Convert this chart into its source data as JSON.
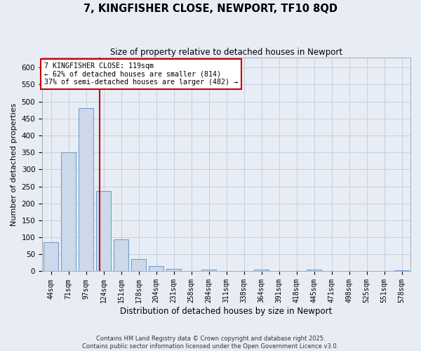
{
  "title": "7, KINGFISHER CLOSE, NEWPORT, TF10 8QD",
  "subtitle": "Size of property relative to detached houses in Newport",
  "xlabel": "Distribution of detached houses by size in Newport",
  "ylabel": "Number of detached properties",
  "footer_line1": "Contains HM Land Registry data © Crown copyright and database right 2025.",
  "footer_line2": "Contains public sector information licensed under the Open Government Licence v3.0.",
  "bin_labels": [
    "44sqm",
    "71sqm",
    "97sqm",
    "124sqm",
    "151sqm",
    "178sqm",
    "204sqm",
    "231sqm",
    "258sqm",
    "284sqm",
    "311sqm",
    "338sqm",
    "364sqm",
    "391sqm",
    "418sqm",
    "445sqm",
    "471sqm",
    "498sqm",
    "525sqm",
    "551sqm",
    "578sqm"
  ],
  "bar_values": [
    85,
    350,
    480,
    237,
    95,
    37,
    15,
    7,
    0,
    6,
    0,
    0,
    5,
    0,
    0,
    6,
    0,
    0,
    0,
    0,
    4
  ],
  "bar_color": "#ccd9ea",
  "bar_edgecolor": "#6699cc",
  "grid_color": "#c5cfe0",
  "bg_color": "#e8edf5",
  "red_line_x": 2.78,
  "annotation_text": "7 KINGFISHER CLOSE: 119sqm\n← 62% of detached houses are smaller (814)\n37% of semi-detached houses are larger (482) →",
  "annotation_box_color": "#ffffff",
  "annotation_border_color": "#cc0000",
  "ylim": [
    0,
    630
  ],
  "yticks": [
    0,
    50,
    100,
    150,
    200,
    250,
    300,
    350,
    400,
    450,
    500,
    550,
    600
  ]
}
